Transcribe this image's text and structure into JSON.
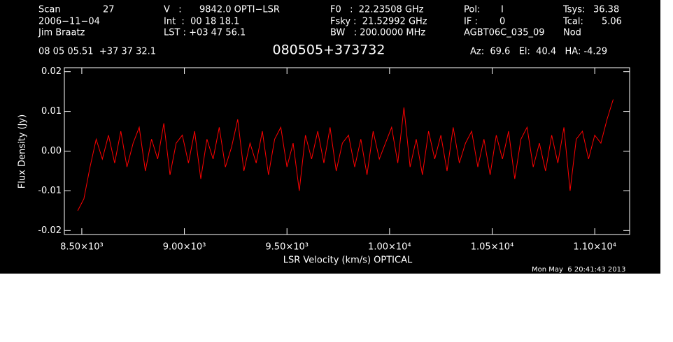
{
  "chart_data": {
    "type": "line",
    "title": "080505+373732",
    "header": [
      "Scan",
      "27",
      "V   :",
      "9842.0 OPTI−LSR",
      "F0   :  22.23508 GHz",
      "Pol:",
      "I",
      "Tsys:",
      "36.38",
      "2006−11−04",
      "Int  :  00 18 18.1",
      "Fsky :  21.52992 GHz",
      "IF :",
      "0",
      "Tcal:",
      "5.06",
      "Jim Braatz",
      "LST : +03 47 56.1",
      "BW   : 200.0000 MHz",
      "AGBT06C_035_09",
      "Nod",
      "08 05 05.51  +37 37 32.1",
      "Az:  69.6   El:  40.4   HA: -4.29"
    ],
    "xlabel": "LSR Velocity (km/s) OPTICAL",
    "ylabel": "Flux Density (Jy)",
    "timestamp": "Mon May  6 20:41:43 2013",
    "xlim": [
      8415,
      11170
    ],
    "ylim": [
      -0.021,
      0.021
    ],
    "xticks": [
      {
        "value": 8500,
        "label": "8.50×10³"
      },
      {
        "value": 9000,
        "label": "9.00×10³"
      },
      {
        "value": 9500,
        "label": "9.50×10³"
      },
      {
        "value": 10000,
        "label": "1.00×10⁴"
      },
      {
        "value": 10500,
        "label": "1.05×10⁴"
      },
      {
        "value": 11000,
        "label": "1.10×10⁴"
      }
    ],
    "yticks": [
      0.02,
      0.01,
      {
        "value": 0,
        "label": "0.00"
      },
      -0.01,
      -0.02
    ],
    "series": [
      {
        "color": "#ff0000",
        "x": [
          8480,
          8510,
          8540,
          8570,
          8600,
          8630,
          8660,
          8690,
          8720,
          8750,
          8780,
          8810,
          8840,
          8870,
          8900,
          8930,
          8960,
          8990,
          9020,
          9050,
          9080,
          9110,
          9140,
          9170,
          9200,
          9230,
          9260,
          9290,
          9320,
          9350,
          9380,
          9410,
          9440,
          9470,
          9500,
          9530,
          9560,
          9590,
          9620,
          9650,
          9680,
          9710,
          9740,
          9770,
          9800,
          9830,
          9860,
          9890,
          9920,
          9950,
          9980,
          10010,
          10040,
          10070,
          10100,
          10130,
          10160,
          10190,
          10220,
          10250,
          10280,
          10310,
          10340,
          10370,
          10400,
          10430,
          10460,
          10490,
          10520,
          10550,
          10580,
          10610,
          10640,
          10670,
          10700,
          10730,
          10760,
          10790,
          10820,
          10850,
          10880,
          10910,
          10940,
          10970,
          11000,
          11030,
          11060,
          11090
        ],
        "values": [
          -0.015,
          -0.012,
          -0.004,
          0.003,
          -0.002,
          0.004,
          -0.003,
          0.005,
          -0.004,
          0.002,
          0.006,
          -0.005,
          0.003,
          -0.002,
          0.007,
          -0.006,
          0.002,
          0.004,
          -0.003,
          0.005,
          -0.007,
          0.003,
          -0.002,
          0.006,
          -0.004,
          0.001,
          0.008,
          -0.005,
          0.002,
          -0.003,
          0.005,
          -0.006,
          0.003,
          0.006,
          -0.004,
          0.002,
          -0.01,
          0.004,
          -0.002,
          0.005,
          -0.003,
          0.006,
          -0.005,
          0.002,
          0.004,
          -0.004,
          0.003,
          -0.006,
          0.005,
          -0.002,
          0.002,
          0.006,
          -0.003,
          0.011,
          -0.004,
          0.003,
          -0.006,
          0.005,
          -0.002,
          0.004,
          -0.005,
          0.006,
          -0.003,
          0.002,
          0.005,
          -0.004,
          0.003,
          -0.006,
          0.004,
          -0.002,
          0.005,
          -0.007,
          0.003,
          0.006,
          -0.004,
          0.002,
          -0.005,
          0.004,
          -0.003,
          0.006,
          -0.01,
          0.003,
          0.005,
          -0.002,
          0.004,
          0.002,
          0.008,
          0.013
        ]
      }
    ]
  }
}
